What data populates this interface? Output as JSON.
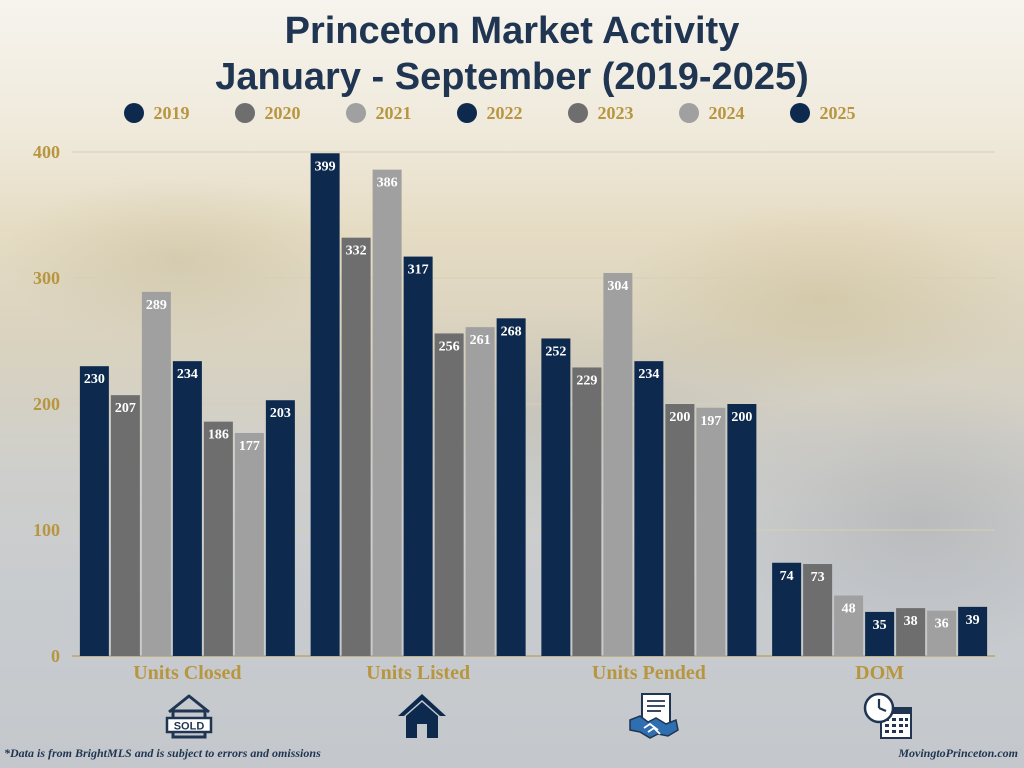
{
  "title": {
    "line1": "Princeton Market Activity",
    "line2": "January - September (2019-2025)"
  },
  "colors": {
    "navy": "#0d2a4e",
    "dark_gray": "#6e6e6e",
    "light_gray": "#a0a0a0",
    "gold": "#b8963f",
    "title": "#1f3552"
  },
  "chart_data": {
    "type": "bar",
    "title": "Princeton Market Activity January - September (2019-2025)",
    "categories": [
      "Units Closed",
      "Units Listed",
      "Units Pended",
      "DOM"
    ],
    "series": [
      {
        "name": "2019",
        "color": "#0d2a4e",
        "values": [
          230,
          399,
          252,
          74
        ]
      },
      {
        "name": "2020",
        "color": "#6e6e6e",
        "values": [
          207,
          332,
          229,
          73
        ]
      },
      {
        "name": "2021",
        "color": "#a0a0a0",
        "values": [
          289,
          386,
          304,
          48
        ]
      },
      {
        "name": "2022",
        "color": "#0d2a4e",
        "values": [
          234,
          317,
          234,
          35
        ]
      },
      {
        "name": "2023",
        "color": "#6e6e6e",
        "values": [
          186,
          256,
          200,
          38
        ]
      },
      {
        "name": "2024",
        "color": "#a0a0a0",
        "values": [
          177,
          261,
          197,
          36
        ]
      },
      {
        "name": "2025",
        "color": "#0d2a4e",
        "values": [
          203,
          268,
          200,
          39
        ]
      }
    ],
    "yticks": [
      "0",
      "100",
      "200",
      "300",
      "400"
    ],
    "ylim": [
      0,
      400
    ],
    "xlabel": "",
    "ylabel": "",
    "grid": true,
    "legend_position": "top-center"
  },
  "icons": [
    {
      "name": "sold-sign-icon",
      "category": "Units Closed"
    },
    {
      "name": "house-icon",
      "category": "Units Listed"
    },
    {
      "name": "handshake-contract-icon",
      "category": "Units Pended"
    },
    {
      "name": "clock-calendar-icon",
      "category": "DOM"
    }
  ],
  "icon_text": {
    "sold": "SOLD"
  },
  "footnote": "*Data is from BrightMLS and is subject to errors and omissions",
  "website": "MovingtoPrinceton.com"
}
